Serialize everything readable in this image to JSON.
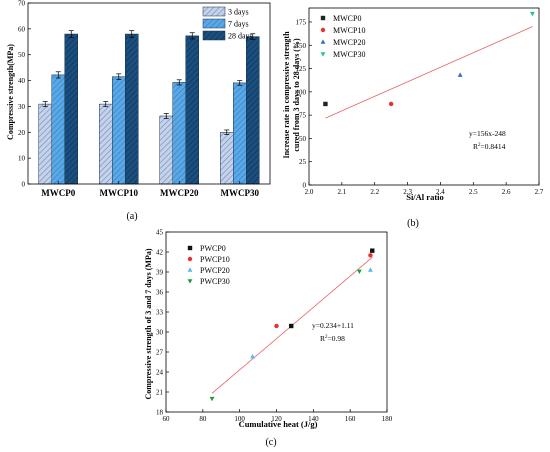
{
  "figure": {
    "panel_labels": [
      "(a)",
      "(b)",
      "(c)"
    ]
  },
  "chart_data": [
    {
      "id": "a",
      "type": "bar",
      "categories": [
        "MWCP0",
        "MWCP10",
        "MWCP20",
        "MWCP30"
      ],
      "series": [
        {
          "name": "3 days",
          "values": [
            30.9,
            30.9,
            26.3,
            20.0
          ],
          "errors": [
            1.0,
            1.0,
            1.0,
            0.9
          ],
          "color": "#c5d3ea"
        },
        {
          "name": "7 days",
          "values": [
            42.2,
            41.5,
            39.3,
            39.1
          ],
          "errors": [
            1.2,
            1.1,
            1.0,
            0.9
          ],
          "color": "#5aa9e6"
        },
        {
          "name": "28 days",
          "values": [
            58.0,
            58.0,
            57.3,
            57.0
          ],
          "errors": [
            1.3,
            1.3,
            1.2,
            1.1
          ],
          "color": "#1a4f7e"
        }
      ],
      "xlabel": "",
      "ylabel": "Compressive strength(MPa)",
      "ylim": [
        0,
        70
      ],
      "yticks": [
        "0",
        "10",
        "20",
        "30",
        "40",
        "50",
        "60",
        "70"
      ],
      "legend_position": "top-right",
      "grid": false
    },
    {
      "id": "b",
      "type": "scatter",
      "series": [
        {
          "name": "MWCP0",
          "x": [
            2.05
          ],
          "y": [
            87
          ],
          "marker": "square",
          "color": "#222222"
        },
        {
          "name": "MWCP10",
          "x": [
            2.25
          ],
          "y": [
            87
          ],
          "marker": "circle",
          "color": "#e8302e"
        },
        {
          "name": "MWCP20",
          "x": [
            2.46
          ],
          "y": [
            118
          ],
          "marker": "triangle-up",
          "color": "#2f6fc6"
        },
        {
          "name": "MWCP30",
          "x": [
            2.68
          ],
          "y": [
            184
          ],
          "marker": "triangle-down",
          "color": "#20c2a0"
        }
      ],
      "fit": {
        "x": [
          2.05,
          2.68
        ],
        "y": [
          71.8,
          170.0
        ],
        "color": "#e86060"
      },
      "equation": "y=156x-248",
      "r2_label": "R",
      "r2_value": "=0.8414",
      "xlabel": "Si/Al ratio",
      "ylabel_lines": [
        "Increase rate in compressive strength",
        "cured from 3 days to 28 days (%)"
      ],
      "xlim": [
        2.0,
        2.7
      ],
      "ylim": [
        0,
        190
      ],
      "xticks": [
        "2.0",
        "2.1",
        "2.2",
        "2.3",
        "2.4",
        "2.5",
        "2.6",
        "2.7"
      ],
      "yticks": [
        "0",
        "25",
        "50",
        "75",
        "100",
        "125",
        "150",
        "175"
      ],
      "legend_position": "top-left",
      "grid": false
    },
    {
      "id": "c",
      "type": "scatter",
      "series": [
        {
          "name": "PWCP0",
          "x": [
            128,
            172
          ],
          "y": [
            30.9,
            42.2
          ],
          "marker": "square",
          "color": "#111111"
        },
        {
          "name": "PWCP10",
          "x": [
            120,
            171
          ],
          "y": [
            30.9,
            41.5
          ],
          "marker": "circle",
          "color": "#e8302e"
        },
        {
          "name": "PWCP20",
          "x": [
            107,
            171
          ],
          "y": [
            26.3,
            39.3
          ],
          "marker": "triangle-up",
          "color": "#56b6f0"
        },
        {
          "name": "PWCP30",
          "x": [
            85,
            165
          ],
          "y": [
            20.0,
            39.1
          ],
          "marker": "triangle-down",
          "color": "#1a9e3a"
        }
      ],
      "fit": {
        "x": [
          85,
          172
        ],
        "y": [
          20.8,
          41.2
        ],
        "color": "#e86060"
      },
      "equation": "y=0.234+1.11",
      "r2_label": "R",
      "r2_value": "=0.98",
      "xlabel": "Cumulative heat (J/g)",
      "ylabel": "Compressive strength of 3 and 7 days (MPa)",
      "xlim": [
        60,
        180
      ],
      "ylim": [
        18,
        45
      ],
      "xticks": [
        "60",
        "80",
        "100",
        "120",
        "140",
        "160",
        "180"
      ],
      "yticks": [
        "18",
        "21",
        "24",
        "27",
        "30",
        "33",
        "36",
        "39",
        "42",
        "45"
      ],
      "legend_position": "top-left",
      "grid": false
    }
  ]
}
